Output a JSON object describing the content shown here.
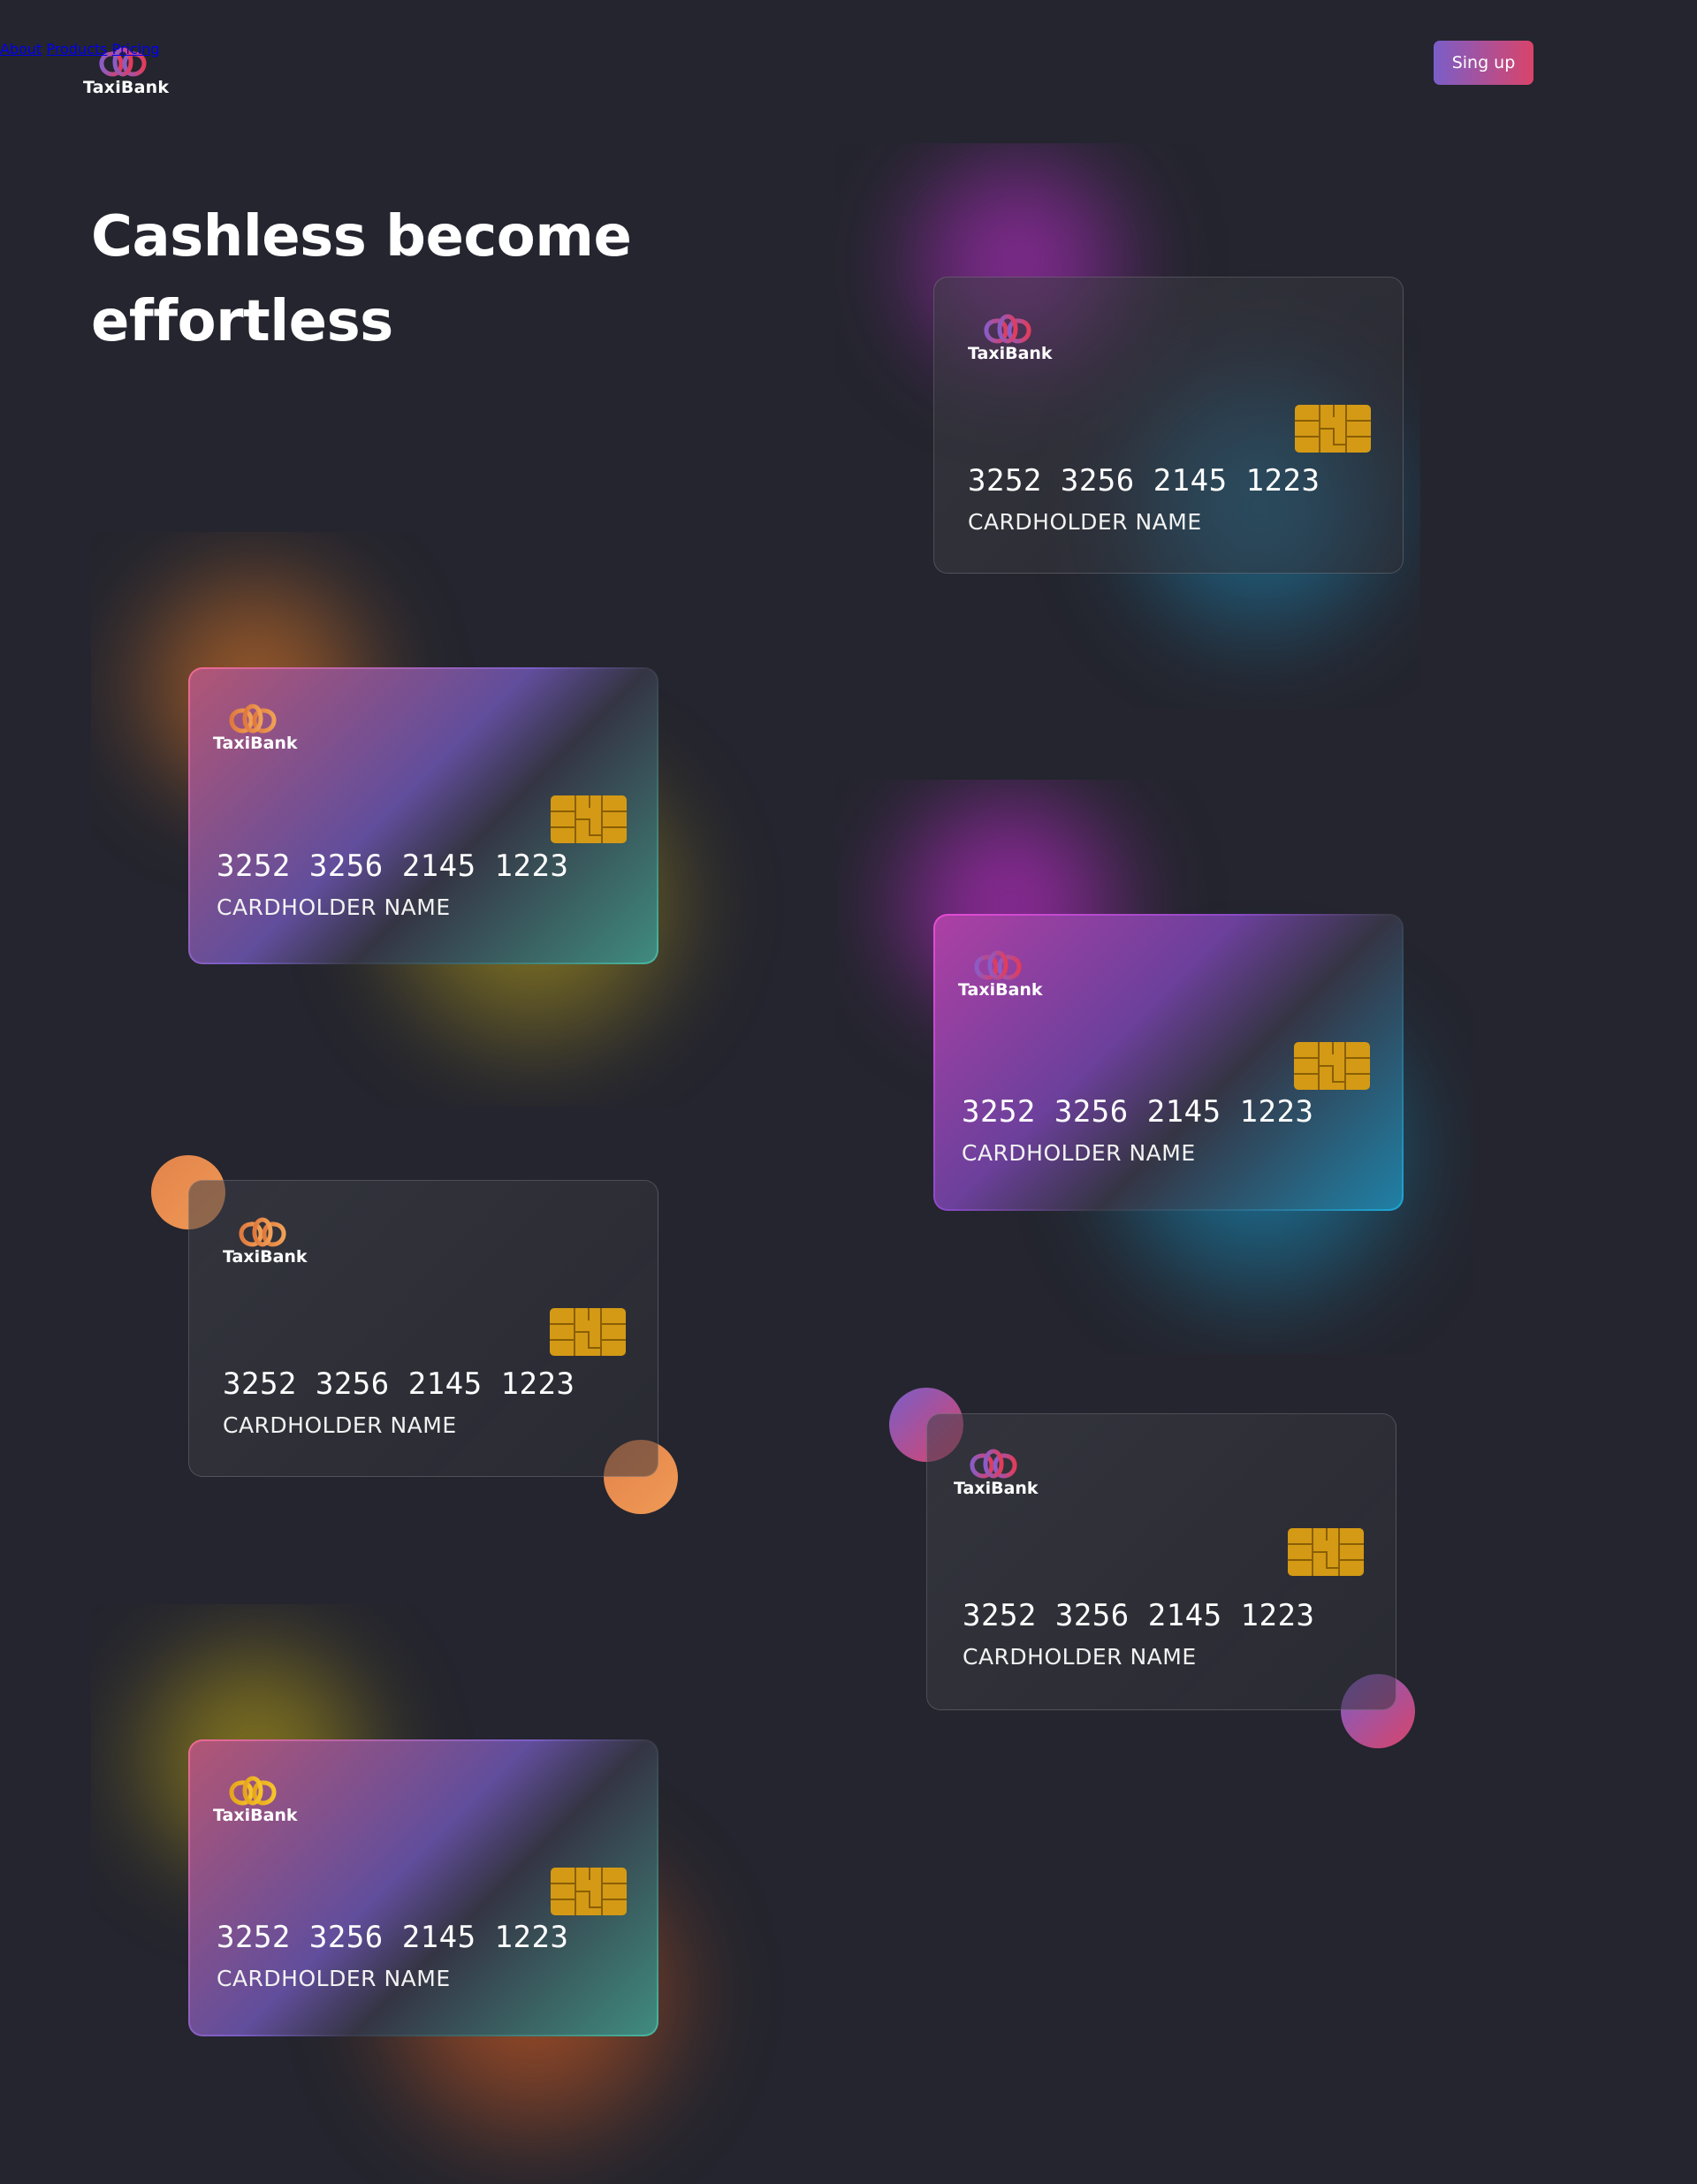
{
  "brand": {
    "name": "TaxiBank"
  },
  "nav": {
    "items": [
      "About",
      "Products",
      "Pricing"
    ],
    "signup_label": "Sing up"
  },
  "hero": {
    "line1": "Cashless become",
    "line2": "effortless"
  },
  "colors": {
    "background": "#24252e",
    "chip": "#d49a15",
    "accent_purple": "#7a5ec8",
    "accent_pink": "#d9446a",
    "accent_orange": "#e8874a"
  },
  "cards": [
    {
      "number": "3252 3256 2145 1223",
      "holder": "CARDHOLDER NAME",
      "brand": "TaxiBank"
    },
    {
      "number": "3252 3256 2145 1223",
      "holder": "CARDHOLDER NAME",
      "brand": "TaxiBank"
    },
    {
      "number": "3252 3256 2145 1223",
      "holder": "CARDHOLDER NAME",
      "brand": "TaxiBank"
    },
    {
      "number": "3252 3256 2145 1223",
      "holder": "CARDHOLDER NAME",
      "brand": "TaxiBank"
    },
    {
      "number": "3252 3256 2145 1223",
      "holder": "CARDHOLDER NAME",
      "brand": "TaxiBank"
    },
    {
      "number": "3252 3256 2145 1223",
      "holder": "CARDHOLDER NAME",
      "brand": "TaxiBank"
    }
  ]
}
